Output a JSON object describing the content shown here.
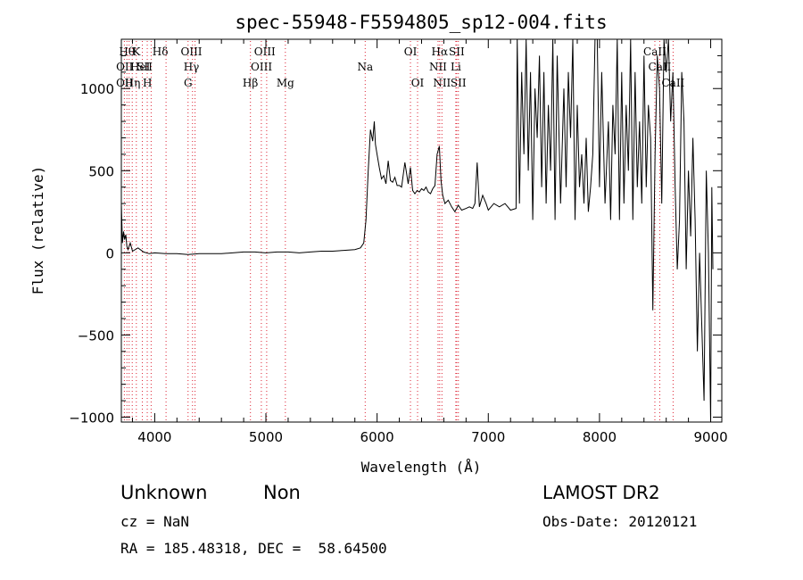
{
  "chart_data": {
    "type": "line",
    "title": "spec-55948-F5594805_sp12-004.fits",
    "xlabel": "Wavelength (Å)",
    "ylabel": "Flux (relative)",
    "xlim": [
      3700,
      9100
    ],
    "ylim": [
      -1030,
      1300
    ],
    "xticks": [
      4000,
      5000,
      6000,
      7000,
      8000,
      9000
    ],
    "yticks": [
      -1000,
      -500,
      0,
      500,
      1000
    ],
    "grid": false,
    "series": [
      {
        "x": [
          3700,
          3710,
          3720,
          3730,
          3740,
          3750,
          3760,
          3780,
          3800,
          3850,
          3900,
          3950,
          4000,
          4100,
          4200,
          4300,
          4400,
          4500,
          4600,
          4700,
          4800,
          4900,
          5000,
          5100,
          5200,
          5300,
          5400,
          5500,
          5600,
          5700,
          5800,
          5850,
          5880,
          5900,
          5920,
          5940,
          5960,
          5975,
          5985,
          6000,
          6020,
          6040,
          6060,
          6080,
          6100,
          6120,
          6140,
          6160,
          6180,
          6200,
          6220,
          6250,
          6280,
          6300,
          6320,
          6340,
          6360,
          6380,
          6400,
          6420,
          6440,
          6460,
          6480,
          6500,
          6520,
          6540,
          6560,
          6575,
          6590,
          6610,
          6640,
          6670,
          6700,
          6730,
          6760,
          6800,
          6830,
          6860,
          6880,
          6900,
          6920,
          6950,
          6980,
          7000,
          7050,
          7100,
          7150,
          7200,
          7250,
          7260,
          7280,
          7300,
          7320,
          7340,
          7360,
          7380,
          7400,
          7420,
          7440,
          7460,
          7480,
          7500,
          7520,
          7540,
          7560,
          7580,
          7600,
          7620,
          7650,
          7680,
          7700,
          7720,
          7740,
          7760,
          7780,
          7800,
          7820,
          7840,
          7860,
          7880,
          7900,
          7920,
          7940,
          7960,
          7980,
          8000,
          8020,
          8050,
          8080,
          8100,
          8120,
          8140,
          8160,
          8180,
          8200,
          8220,
          8240,
          8260,
          8280,
          8300,
          8320,
          8340,
          8360,
          8380,
          8400,
          8420,
          8440,
          8460,
          8480,
          8500,
          8520,
          8540,
          8560,
          8580,
          8600,
          8620,
          8640,
          8660,
          8680,
          8700,
          8720,
          8740,
          8760,
          8780,
          8800,
          8820,
          8840,
          8860,
          8880,
          8900,
          8920,
          8940,
          8960,
          8980,
          9000,
          9010,
          9020
        ],
        "y": [
          300,
          60,
          130,
          80,
          110,
          40,
          20,
          60,
          10,
          30,
          5,
          -5,
          0,
          -5,
          -5,
          -10,
          -5,
          -5,
          -5,
          0,
          5,
          5,
          0,
          5,
          5,
          0,
          5,
          10,
          10,
          15,
          20,
          30,
          60,
          200,
          500,
          750,
          680,
          800,
          660,
          600,
          520,
          450,
          470,
          420,
          560,
          440,
          430,
          460,
          410,
          410,
          400,
          550,
          420,
          520,
          380,
          360,
          380,
          370,
          390,
          380,
          400,
          370,
          360,
          390,
          410,
          600,
          650,
          440,
          350,
          300,
          320,
          280,
          250,
          290,
          260,
          270,
          280,
          270,
          300,
          550,
          280,
          350,
          300,
          260,
          300,
          280,
          300,
          260,
          270,
          1400,
          300,
          1100,
          600,
          1300,
          500,
          1100,
          200,
          1000,
          700,
          1200,
          400,
          1100,
          300,
          900,
          500,
          1400,
          200,
          1200,
          300,
          1000,
          400,
          1100,
          700,
          1300,
          200,
          900,
          400,
          600,
          300,
          700,
          250,
          400,
          600,
          1300,
          1350,
          400,
          1100,
          300,
          800,
          200,
          900,
          600,
          1300,
          200,
          1100,
          300,
          900,
          500,
          1300,
          200,
          1100,
          400,
          800,
          300,
          1200,
          400,
          900,
          700,
          -350,
          600,
          1200,
          1000,
          300,
          1300,
          1100,
          1300,
          800,
          1100,
          400,
          -100,
          200,
          1100,
          800,
          -100,
          500,
          100,
          700,
          200,
          -600,
          0,
          -450,
          -900,
          500,
          0,
          -1050,
          400,
          -100
        ]
      }
    ],
    "line_labels": [
      {
        "wl": 3750,
        "text": "Hθ",
        "row": 1
      },
      {
        "wl": 3730,
        "text": "OII",
        "row": 2
      },
      {
        "wl": 3730,
        "text": "OII",
        "row": 3
      },
      {
        "wl": 3835,
        "text": "K",
        "row": 1
      },
      {
        "wl": 3870,
        "text": "HeI",
        "row": 2
      },
      {
        "wl": 3800,
        "text": "Hη",
        "row": 3
      },
      {
        "wl": 3910,
        "text": "SII",
        "row": 2
      },
      {
        "wl": 3935,
        "text": "H",
        "row": 3
      },
      {
        "wl": 4050,
        "text": "Hδ",
        "row": 1
      },
      {
        "wl": 4330,
        "text": "OIII",
        "row": 1
      },
      {
        "wl": 4330,
        "text": "Hγ",
        "row": 2
      },
      {
        "wl": 4300,
        "text": "G",
        "row": 3
      },
      {
        "wl": 4860,
        "text": "Hβ",
        "row": 3
      },
      {
        "wl": 4990,
        "text": "OIII",
        "row": 1
      },
      {
        "wl": 4960,
        "text": "OIII",
        "row": 2
      },
      {
        "wl": 5175,
        "text": "Mg",
        "row": 3
      },
      {
        "wl": 5893,
        "text": "Na",
        "row": 2
      },
      {
        "wl": 6300,
        "text": "OI",
        "row": 1
      },
      {
        "wl": 6364,
        "text": "OI",
        "row": 3
      },
      {
        "wl": 6563,
        "text": "Hα",
        "row": 1
      },
      {
        "wl": 6548,
        "text": "NII",
        "row": 2
      },
      {
        "wl": 6583,
        "text": "NII",
        "row": 3
      },
      {
        "wl": 6716,
        "text": "SII",
        "row": 1
      },
      {
        "wl": 6708,
        "text": "Li",
        "row": 2
      },
      {
        "wl": 6731,
        "text": "SII",
        "row": 3
      },
      {
        "wl": 8498,
        "text": "CaII",
        "row": 1
      },
      {
        "wl": 8542,
        "text": "CaII",
        "row": 2
      },
      {
        "wl": 8662,
        "text": "CaII",
        "row": 3
      }
    ],
    "line_markers": [
      3727,
      3750,
      3770,
      3798,
      3835,
      3889,
      3933,
      3968,
      4102,
      4300,
      4340,
      4363,
      4861,
      4959,
      5007,
      5175,
      5893,
      6300,
      6364,
      6548,
      6563,
      6583,
      6708,
      6716,
      6731,
      8498,
      8542,
      8662
    ]
  },
  "info": {
    "classification": "Unknown",
    "subclass": "Non",
    "survey": "LAMOST DR2",
    "cz": "cz = NaN",
    "obs_date": "Obs-Date: 20120121",
    "radec": "RA = 185.48318, DEC =  58.64500"
  }
}
